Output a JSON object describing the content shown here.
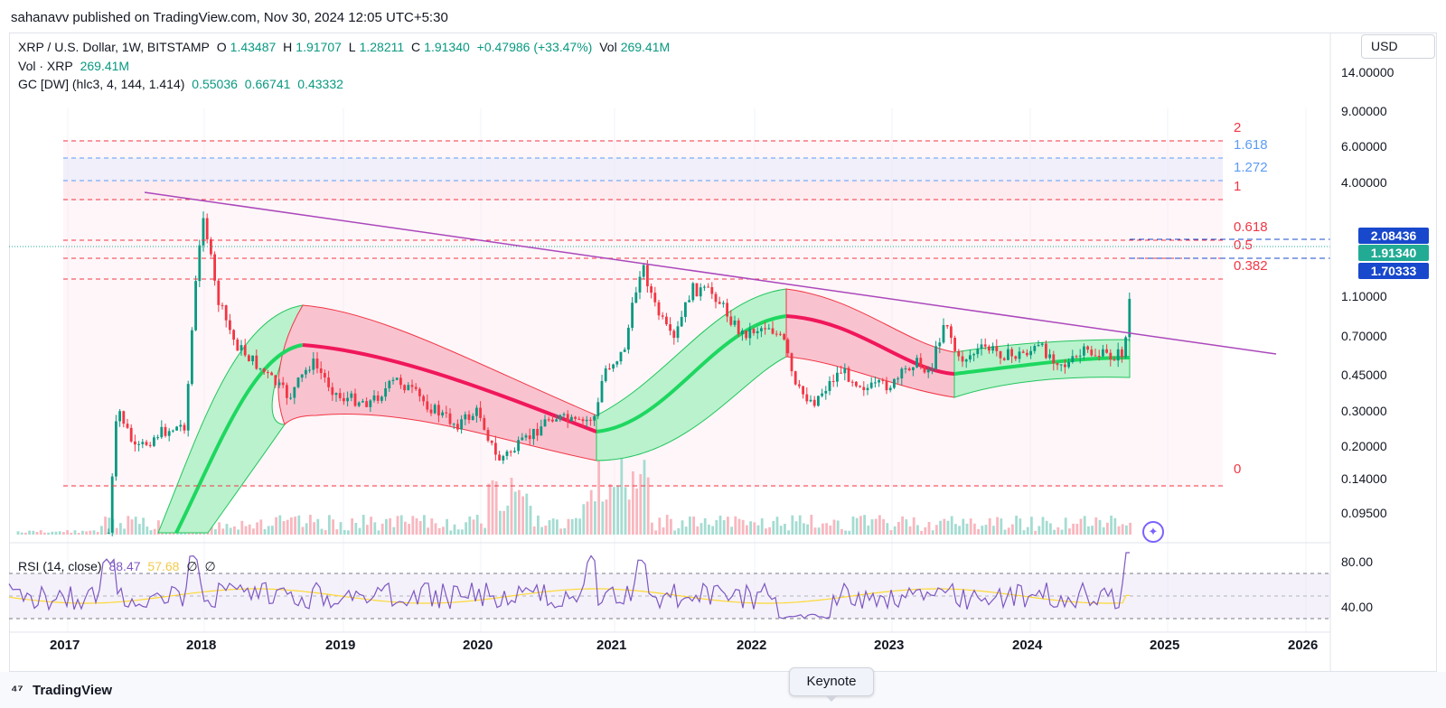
{
  "publisher_line": "sahanavv published on TradingView.com, Nov 30, 2024 12:05 UTC+5:30",
  "legend": {
    "symbol": "XRP / U.S. Dollar, 1W, BITSTAMP",
    "o_label": "O",
    "o_value": "1.43487",
    "h_label": "H",
    "h_value": "1.91707",
    "l_label": "L",
    "l_value": "1.28211",
    "c_label": "C",
    "c_value": "1.91340",
    "change": "+0.47986 (+33.47%)",
    "vol_label": "Vol",
    "vol_value": "269.41M",
    "vol_row_label": "Vol · XRP",
    "vol_row_value": "269.41M",
    "gc_label": "GC [DW] (hlc3, 4, 144, 1.414)",
    "gc_v1": "0.55036",
    "gc_v2": "0.66741",
    "gc_v3": "0.43332",
    "rsi_label": "RSI (14, close)",
    "rsi_v1": "88.47",
    "rsi_v2": "57.68",
    "rsi_na1": "∅",
    "rsi_na2": "∅"
  },
  "currency_button": "USD",
  "price_axis": [
    "14.00000",
    "9.00000",
    "6.00000",
    "4.00000",
    "2.08436",
    "1.91340",
    "1.70333",
    "1.10000",
    "0.70000",
    "0.45000",
    "0.30000",
    "0.20000",
    "0.14000",
    "0.09500"
  ],
  "rsi_axis": [
    "80.00",
    "40.00"
  ],
  "time_axis": [
    "2017",
    "2018",
    "2019",
    "2020",
    "2021",
    "2022",
    "2023",
    "2024",
    "2025",
    "2026"
  ],
  "price_tags": {
    "upper": {
      "label": "2.08436",
      "color": "#1848cc"
    },
    "current": {
      "label": "1.91340",
      "color": "#22ab94"
    },
    "lower": {
      "label": "1.70333",
      "color": "#1848cc"
    }
  },
  "fib_levels": [
    {
      "label": "2",
      "color": "#f23645"
    },
    {
      "label": "1.618",
      "color": "#5b9cf6"
    },
    {
      "label": "1.272",
      "color": "#5b9cf6"
    },
    {
      "label": "1",
      "color": "#f23645"
    },
    {
      "label": "0.618",
      "color": "#f23645"
    },
    {
      "label": "0.5",
      "color": "#f23645"
    },
    {
      "label": "0.382",
      "color": "#f23645"
    },
    {
      "label": "0",
      "color": "#f23645"
    }
  ],
  "branding": "TradingView",
  "keynote": "Keynote",
  "colors": {
    "up": "#089981",
    "down": "#f23645",
    "trendline": "#9c27b0",
    "rsi": "#7e57c2",
    "rsi_ma": "#fdd835"
  }
}
